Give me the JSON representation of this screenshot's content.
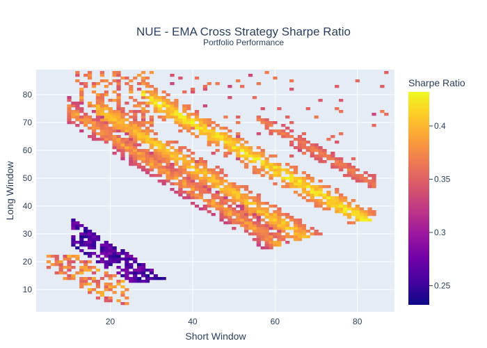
{
  "chart_data": {
    "type": "heatmap",
    "title": "NUE - EMA Cross Strategy Sharpe Ratio",
    "subtitle": "Portfolio Performance",
    "xlabel": "Short Window",
    "ylabel": "Long Window",
    "xlim": [
      2,
      89
    ],
    "ylim": [
      2,
      89
    ],
    "x_ticks": [
      20,
      40,
      60,
      80
    ],
    "y_ticks": [
      10,
      20,
      30,
      40,
      50,
      60,
      70,
      80
    ],
    "colorbar": {
      "title": "Sharpe Ratio",
      "range": [
        0.232,
        0.432
      ],
      "ticks": [
        0.25,
        0.3,
        0.35,
        0.4
      ],
      "colorscale": [
        "#0d0887",
        "#46039f",
        "#7201a8",
        "#9c179e",
        "#bd3786",
        "#d8576b",
        "#ed7953",
        "#fb9f3a",
        "#fdca26",
        "#f0f921"
      ]
    },
    "bands": [
      {
        "name": "lower diagonal band",
        "x": [
          12,
          78
        ],
        "y": [
          70,
          12
        ],
        "value_range": [
          0.31,
          0.4
        ]
      },
      {
        "name": "middle diagonal band",
        "x": [
          18,
          80
        ],
        "y": [
          68,
          20
        ],
        "value_range": [
          0.33,
          0.41
        ]
      },
      {
        "name": "upper diagonal band",
        "x": [
          30,
          85
        ],
        "y": [
          72,
          32
        ],
        "value_range": [
          0.33,
          0.42
        ]
      },
      {
        "name": "far upper diagonal band",
        "x": [
          60,
          82
        ],
        "y": [
          80,
          55
        ],
        "value_range": [
          0.33,
          0.37
        ]
      },
      {
        "name": "low-Sharpe cluster",
        "x": [
          12,
          34
        ],
        "y": [
          34,
          12
        ],
        "value_range": [
          0.235,
          0.28
        ]
      }
    ]
  }
}
